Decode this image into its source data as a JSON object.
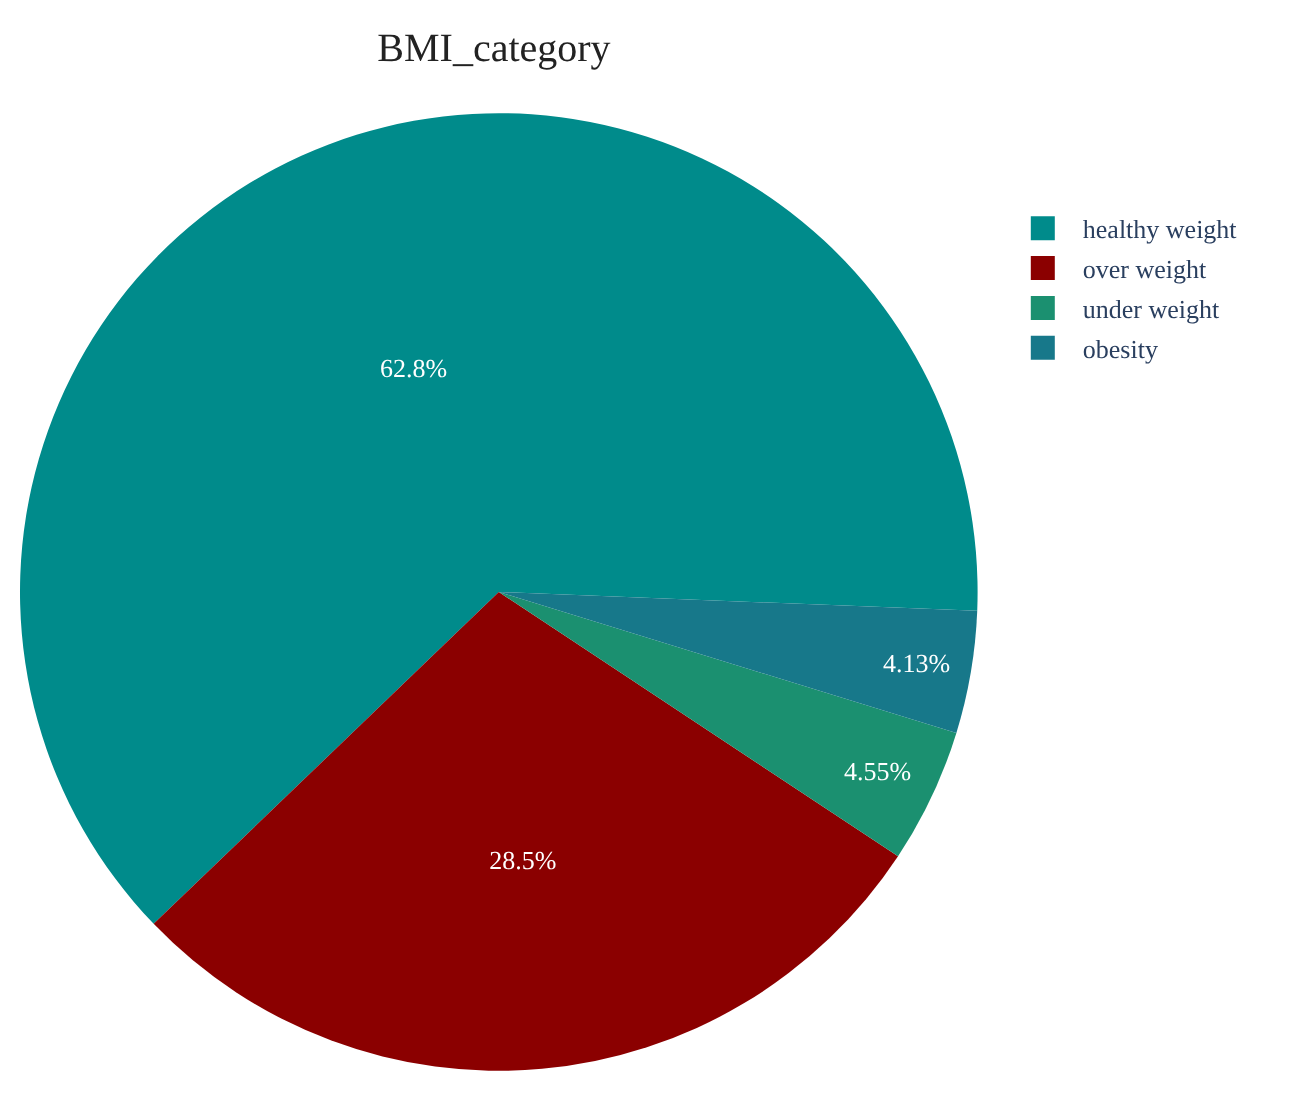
{
  "chart_data": {
    "type": "pie",
    "title": "BMI_category",
    "categories": [
      "healthy weight",
      "over weight",
      "under weight",
      "obesity"
    ],
    "values": [
      62.8,
      28.5,
      4.55,
      4.13
    ],
    "colors": [
      "#008b8b",
      "#8b0000",
      "#1b9070",
      "#17788a"
    ],
    "value_labels": [
      "62.8%",
      "28.5%",
      "4.55%",
      "4.13%"
    ],
    "legend": "top right"
  }
}
